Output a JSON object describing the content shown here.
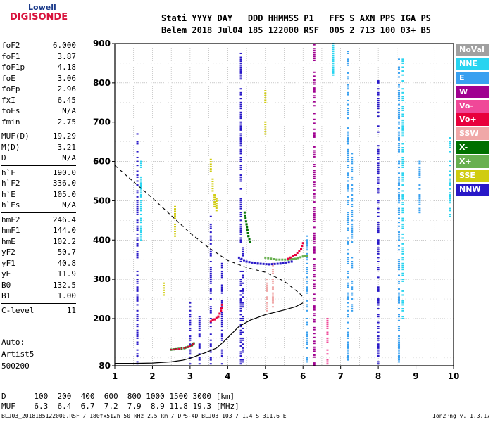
{
  "logo": {
    "line1": "Lowell",
    "line2": "DIGISONDE"
  },
  "header": {
    "line1": "Stati YYYY DAY   DDD HHMMSS P1   FFS S AXN PPS IGA PS",
    "line2": "Belem 2018 Jul04 185 122000 RSF  005 2 713 100 03+ B5"
  },
  "params": [
    [
      {
        "k": "foF2",
        "v": "6.000"
      },
      {
        "k": "foF1",
        "v": "3.87"
      },
      {
        "k": "foF1p",
        "v": "4.18"
      },
      {
        "k": "foE",
        "v": "3.06"
      },
      {
        "k": "foEp",
        "v": "2.96"
      },
      {
        "k": "fxI",
        "v": "6.45"
      },
      {
        "k": "foEs",
        "v": "N/A"
      },
      {
        "k": "fmin",
        "v": "2.75"
      }
    ],
    [
      {
        "k": "MUF(D)",
        "v": "19.29"
      },
      {
        "k": "M(D)",
        "v": "3.21"
      },
      {
        "k": "D",
        "v": "N/A"
      }
    ],
    [
      {
        "k": "h`F",
        "v": "190.0"
      },
      {
        "k": "h`F2",
        "v": "336.0"
      },
      {
        "k": "h`E",
        "v": "105.0"
      },
      {
        "k": "h`Es",
        "v": "N/A"
      }
    ],
    [
      {
        "k": "hmF2",
        "v": "246.4"
      },
      {
        "k": "hmF1",
        "v": "144.0"
      },
      {
        "k": "hmE",
        "v": "102.2"
      },
      {
        "k": "yF2",
        "v": "50.7"
      },
      {
        "k": "yF1",
        "v": "40.8"
      },
      {
        "k": "yE",
        "v": "11.9"
      },
      {
        "k": "B0",
        "v": "132.5"
      },
      {
        "k": "B1",
        "v": "1.00"
      }
    ],
    [
      {
        "k": "C-level",
        "v": "11"
      }
    ]
  ],
  "auto": {
    "l1": "Auto:",
    "l2": "Artist5",
    "l3": "500200"
  },
  "legend": [
    {
      "label": "NoVal",
      "color": "#a0a0a0"
    },
    {
      "label": "NNE",
      "color": "#28d4f0"
    },
    {
      "label": "E",
      "color": "#38a0f0"
    },
    {
      "label": "W",
      "color": "#a00090"
    },
    {
      "label": "Vo-",
      "color": "#f04898"
    },
    {
      "label": "Vo+",
      "color": "#e8003c"
    },
    {
      "label": "SSW",
      "color": "#f0a8a8"
    },
    {
      "label": "X-",
      "color": "#007000"
    },
    {
      "label": "X+",
      "color": "#68b050"
    },
    {
      "label": "SSE",
      "color": "#d0cc10"
    },
    {
      "label": "NNW",
      "color": "#2818c8"
    }
  ],
  "muf_table": {
    "row1": "D      100  200  400  600  800 1000 1500 3000 [km]",
    "row2": "MUF    6.3  6.4  6.7  7.2  7.9  8.9 11.8 19.3 [MHz]"
  },
  "footer": {
    "left": "BLJ03_2018185122000.RSF / 180fx512h 50 kHz 2.5 km / DPS-4D BLJ03 103 / 1.4 S 311.6 E",
    "right": "Ion2Png v. 1.3.17"
  },
  "chart_data": {
    "type": "scatter",
    "title": "",
    "xlabel": "",
    "ylabel": "",
    "xlim": [
      1,
      10
    ],
    "ylim": [
      80,
      900
    ],
    "x_ticks": [
      1,
      2,
      3,
      4,
      5,
      6,
      7,
      8,
      9,
      10
    ],
    "y_ticks": [
      80,
      200,
      300,
      400,
      500,
      600,
      700,
      800,
      900
    ],
    "grid": true,
    "legend_position": "right",
    "profile_solid": [
      [
        1.0,
        86
      ],
      [
        1.5,
        86
      ],
      [
        2.0,
        87
      ],
      [
        2.5,
        90
      ],
      [
        2.8,
        94
      ],
      [
        3.0,
        99
      ],
      [
        3.2,
        106
      ],
      [
        3.4,
        113
      ],
      [
        3.7,
        125
      ],
      [
        3.9,
        142
      ],
      [
        4.1,
        161
      ],
      [
        4.3,
        180
      ],
      [
        4.6,
        196
      ],
      [
        5.0,
        210
      ],
      [
        5.5,
        222
      ],
      [
        5.8,
        230
      ],
      [
        6.0,
        240
      ]
    ],
    "profile_dashed": [
      [
        1.0,
        590
      ],
      [
        1.5,
        548
      ],
      [
        2.0,
        507
      ],
      [
        2.5,
        462
      ],
      [
        3.0,
        418
      ],
      [
        3.5,
        380
      ],
      [
        4.0,
        348
      ],
      [
        4.5,
        330
      ],
      [
        5.0,
        318
      ],
      [
        5.5,
        295
      ],
      [
        5.9,
        265
      ],
      [
        6.0,
        255
      ]
    ],
    "trace_vo_plus": [
      [
        3.55,
        193
      ],
      [
        3.65,
        198
      ],
      [
        3.75,
        205
      ],
      [
        3.82,
        220
      ],
      [
        3.85,
        235
      ],
      [
        5.6,
        352
      ],
      [
        5.8,
        362
      ],
      [
        5.95,
        378
      ],
      [
        6.0,
        392
      ]
    ],
    "trace_x_plus": [
      [
        5.0,
        355
      ],
      [
        5.3,
        350
      ],
      [
        5.6,
        350
      ],
      [
        5.8,
        352
      ],
      [
        6.0,
        358
      ],
      [
        6.1,
        360
      ]
    ],
    "trace_nnw_f": [
      [
        4.3,
        355
      ],
      [
        4.5,
        345
      ],
      [
        4.8,
        340
      ],
      [
        5.1,
        338
      ],
      [
        5.4,
        340
      ],
      [
        5.7,
        345
      ]
    ],
    "trace_sse": [
      [
        3.55,
        605
      ],
      [
        3.6,
        555
      ],
      [
        3.65,
        515
      ],
      [
        3.7,
        505
      ],
      [
        2.6,
        485
      ],
      [
        2.6,
        440
      ],
      [
        5.0,
        780
      ],
      [
        5.0,
        700
      ],
      [
        2.3,
        290
      ]
    ],
    "trace_xminus": [
      [
        4.45,
        470
      ],
      [
        4.5,
        440
      ],
      [
        4.55,
        410
      ],
      [
        4.6,
        395
      ]
    ],
    "e_trace": [
      [
        2.5,
        121
      ],
      [
        2.7,
        123
      ],
      [
        2.85,
        125
      ],
      [
        2.95,
        128
      ],
      [
        3.05,
        132
      ],
      [
        3.1,
        137
      ]
    ],
    "columns": [
      {
        "x": 6.3,
        "y0": 82,
        "y1": 900,
        "series": "W"
      },
      {
        "x": 6.8,
        "y0": 820,
        "y1": 900,
        "series": "NNE"
      },
      {
        "x": 7.2,
        "y0": 90,
        "y1": 880,
        "series": "E"
      },
      {
        "x": 7.3,
        "y0": 220,
        "y1": 620,
        "series": "E"
      },
      {
        "x": 8.0,
        "y0": 85,
        "y1": 810,
        "series": "NNW"
      },
      {
        "x": 8.55,
        "y0": 90,
        "y1": 860,
        "series": "E"
      },
      {
        "x": 8.65,
        "y0": 200,
        "y1": 860,
        "series": "NNE"
      },
      {
        "x": 9.1,
        "y0": 470,
        "y1": 600,
        "series": "E"
      },
      {
        "x": 9.9,
        "y0": 460,
        "y1": 660,
        "series": "NNE"
      },
      {
        "x": 4.35,
        "y0": 85,
        "y1": 880,
        "series": "NNW"
      },
      {
        "x": 4.4,
        "y0": 85,
        "y1": 380,
        "series": "NNW"
      },
      {
        "x": 3.55,
        "y0": 85,
        "y1": 460,
        "series": "NNW"
      },
      {
        "x": 3.85,
        "y0": 85,
        "y1": 340,
        "series": "NNW"
      },
      {
        "x": 1.6,
        "y0": 85,
        "y1": 670,
        "series": "NNW"
      },
      {
        "x": 1.7,
        "y0": 400,
        "y1": 600,
        "series": "NNE"
      },
      {
        "x": 3.0,
        "y0": 85,
        "y1": 240,
        "series": "NNW"
      },
      {
        "x": 3.25,
        "y0": 85,
        "y1": 220,
        "series": "NNW"
      },
      {
        "x": 5.2,
        "y0": 230,
        "y1": 340,
        "series": "SSW"
      },
      {
        "x": 5.05,
        "y0": 220,
        "y1": 300,
        "series": "SSW"
      },
      {
        "x": 6.65,
        "y0": 85,
        "y1": 200,
        "series": "Vo-"
      },
      {
        "x": 6.1,
        "y0": 85,
        "y1": 410,
        "series": "E"
      }
    ]
  }
}
